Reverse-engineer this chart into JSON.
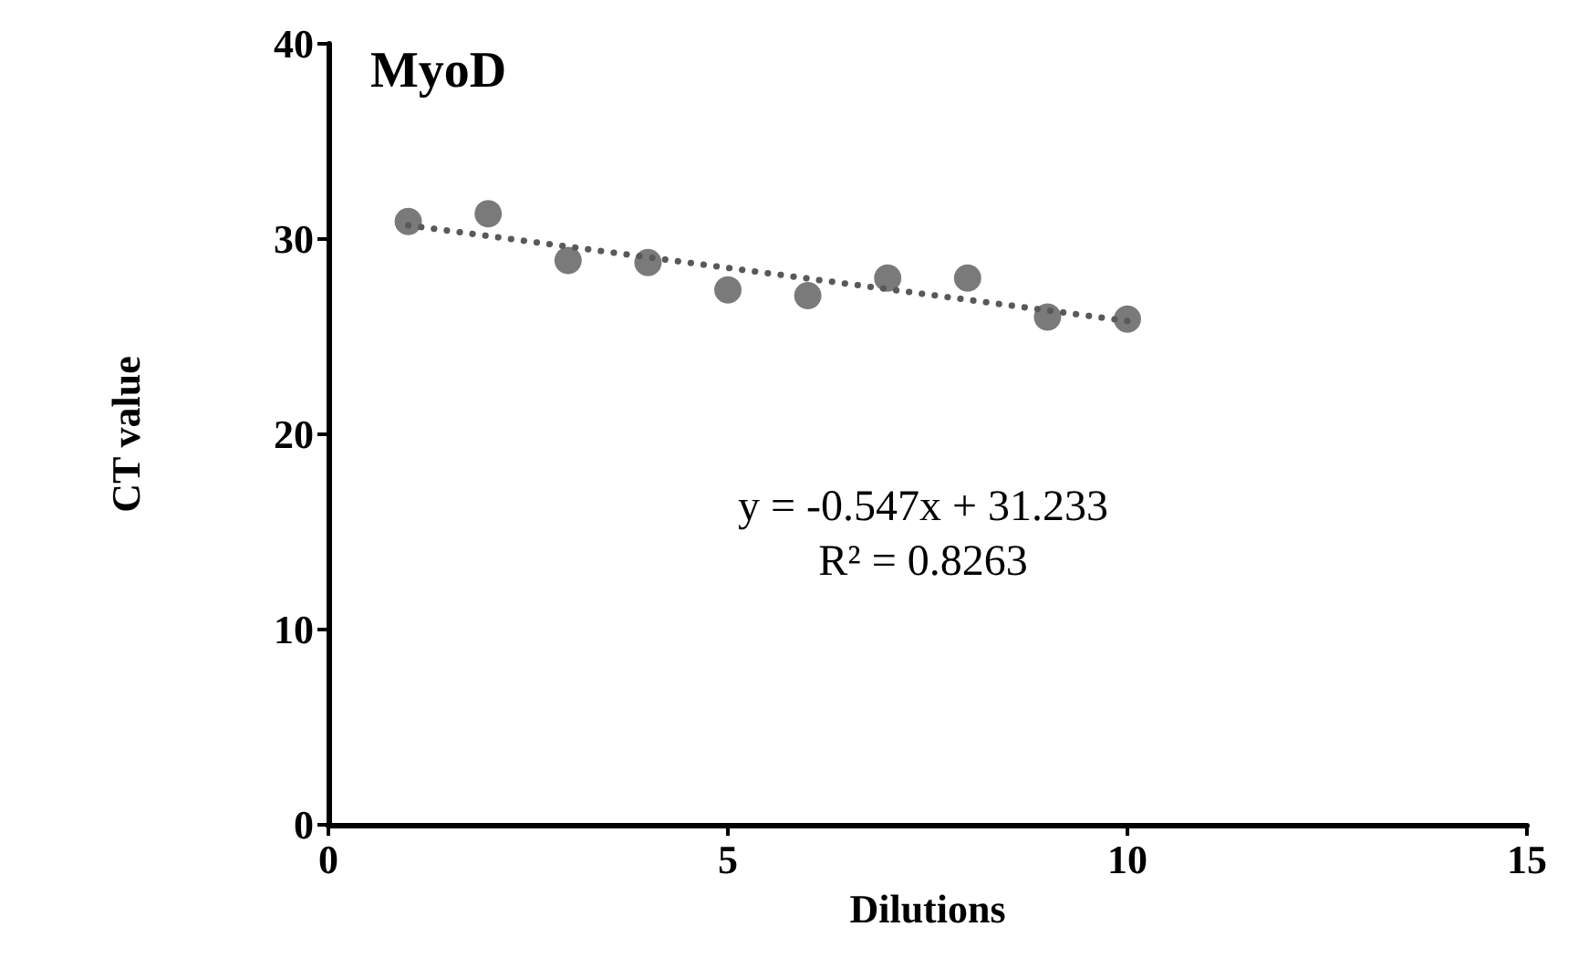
{
  "chart_data": {
    "type": "scatter",
    "title": "MyoD",
    "xlabel": "Dilutions",
    "ylabel": "CT value",
    "annotations": [
      "y = -0.547x + 31.233",
      "R² = 0.8263"
    ],
    "xlim": [
      0,
      15
    ],
    "xticks": [
      0,
      5,
      10,
      15
    ],
    "ylim": [
      0,
      40
    ],
    "yticks": [
      0,
      10,
      20,
      30,
      40
    ],
    "grid": false,
    "marker": "circle",
    "series": [
      {
        "color": "#595959",
        "x": [
          1,
          2,
          3,
          4,
          5,
          6,
          7,
          8,
          9,
          10
        ],
        "values": [
          30.9,
          31.3,
          28.9,
          28.8,
          27.4,
          27.1,
          28.0,
          28.0,
          26.0,
          25.9
        ]
      },
      {
        "type": "line",
        "line_style": "dotted",
        "marker": "none",
        "color": "#595959",
        "x": [
          1,
          10
        ],
        "values": [
          30.7,
          25.8
        ]
      }
    ]
  }
}
